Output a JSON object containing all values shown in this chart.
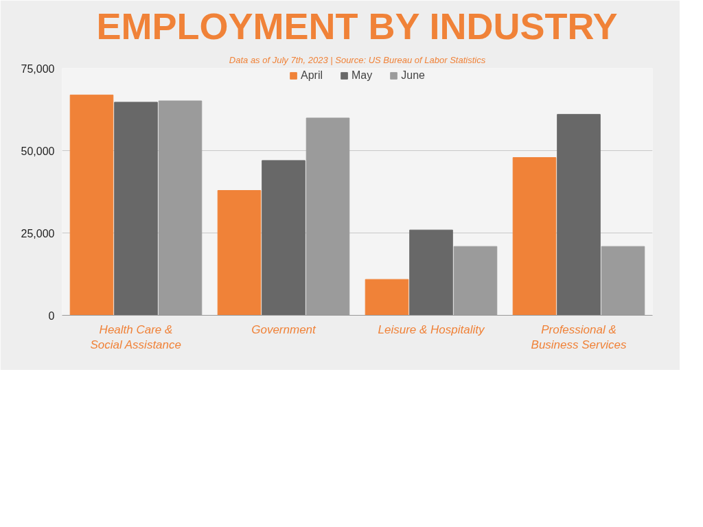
{
  "chart_data": {
    "type": "bar",
    "title": "EMPLOYMENT BY INDUSTRY",
    "subtitle": "Data as of July 7th, 2023 | Source: US Bureau of Labor Statistics",
    "categories": [
      "Health Care &\nSocial Assistance",
      "Government",
      "Leisure & Hospitality",
      "Professional &\nBusiness Services"
    ],
    "series": [
      {
        "name": "April",
        "color": "#f08238",
        "values": [
          66900,
          37900,
          10900,
          47900
        ]
      },
      {
        "name": "May",
        "color": "#686868",
        "values": [
          64700,
          47000,
          25900,
          61000
        ]
      },
      {
        "name": "June",
        "color": "#9b9b9b",
        "values": [
          65100,
          59900,
          20900,
          20900
        ]
      }
    ],
    "ylim": [
      0,
      75000
    ],
    "yticks": [
      {
        "value": 0,
        "label": "0"
      },
      {
        "value": 25000,
        "label": "25,000"
      },
      {
        "value": 50000,
        "label": "50,000"
      },
      {
        "value": 75000,
        "label": "75,000"
      }
    ],
    "grid": "y",
    "legend": "top"
  }
}
